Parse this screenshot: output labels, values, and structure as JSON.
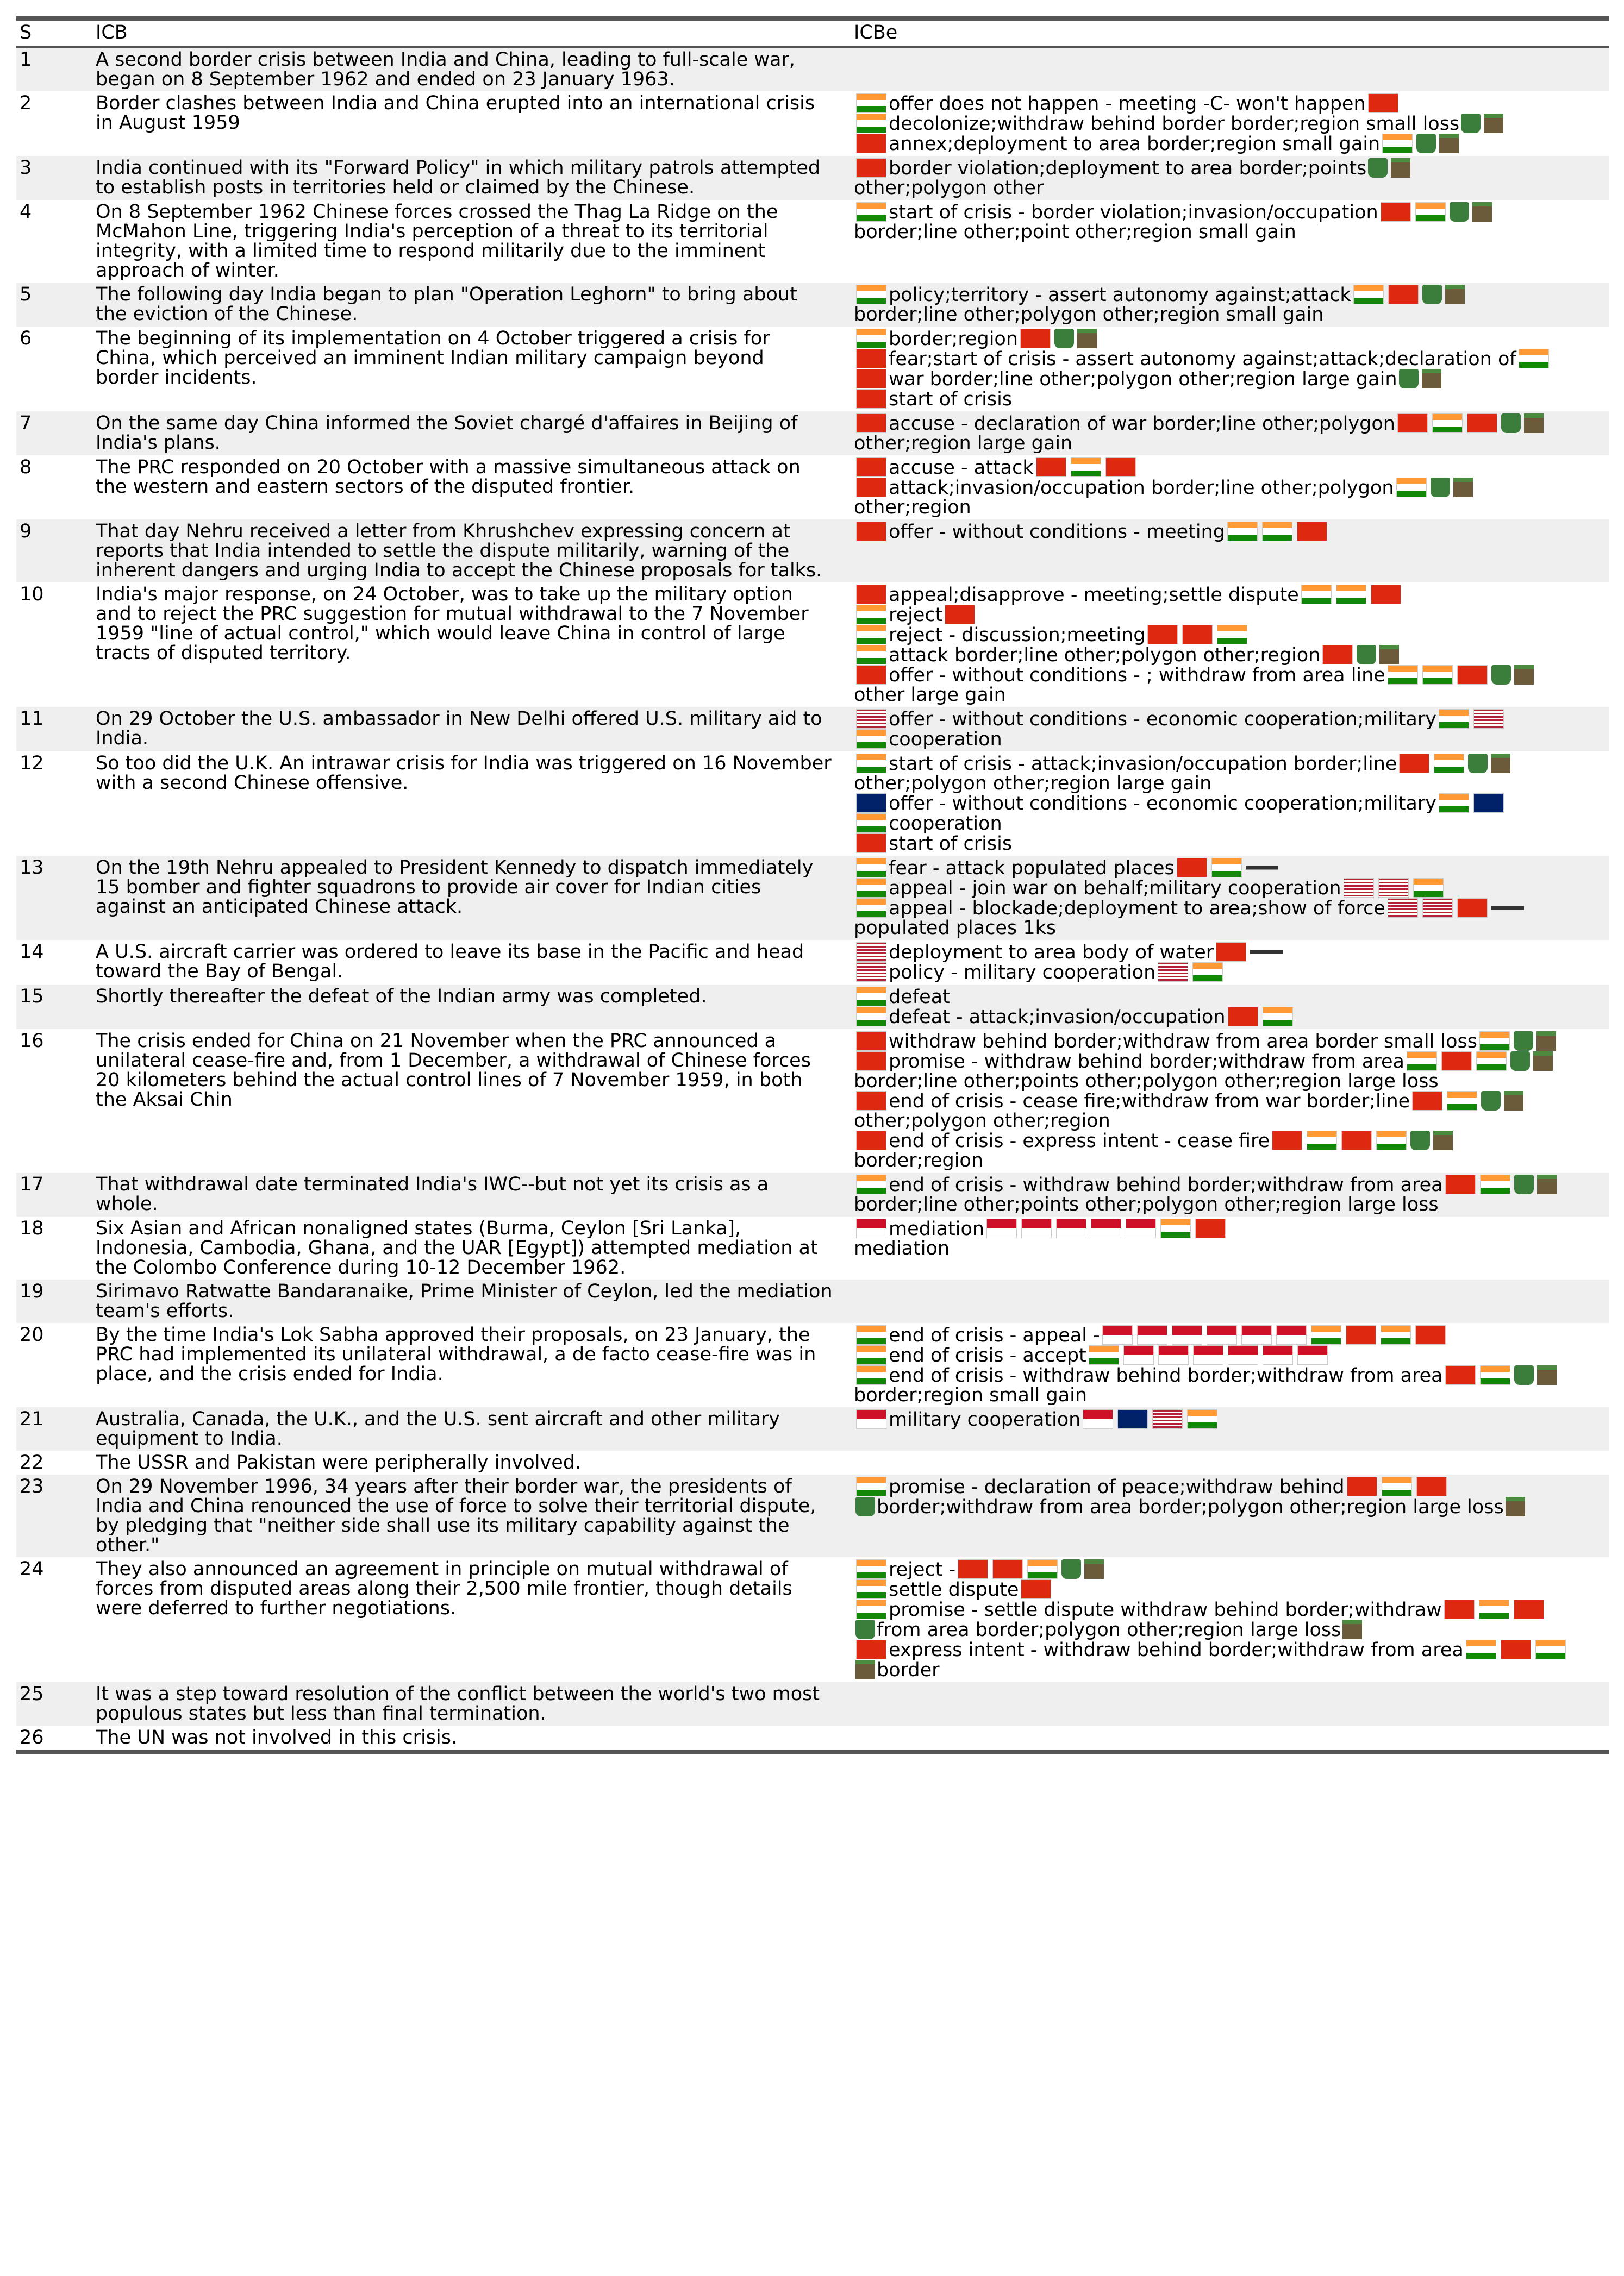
{
  "headers": [
    "S",
    "ICB",
    "ICBe"
  ],
  "rows": [
    {
      "s": "1",
      "icb": [
        "A second border crisis between India and China, leading to full-scale war,",
        "began on 8 September 1962 and ended on 23 January 1963."
      ],
      "icbe": []
    },
    {
      "s": "2",
      "icb": [
        "Border clashes between India and China erupted into an international crisis",
        "in August 1959"
      ],
      "icbe": [
        "offer does not happen - meeting -C- won't happen",
        "decolonize;withdraw behind border border;region small loss",
        "annex;deployment to area border;region small gain"
      ]
    },
    {
      "s": "3",
      "icb": [
        "India continued with its \"Forward Policy\" in which military patrols attempted",
        "to establish posts in territories held or claimed by the Chinese."
      ],
      "icbe": [
        "border violation;deployment to area border;points",
        "other;polygon other"
      ]
    },
    {
      "s": "4",
      "icb": [
        "On 8 September 1962 Chinese forces crossed the Thag La Ridge on the",
        "McMahon Line, triggering India's perception of a threat to its territorial",
        "integrity, with a limited time to respond militarily due to the imminent",
        "approach of winter."
      ],
      "icbe": [
        "start of crisis - border violation;invasion/occupation",
        "border;line other;point other;region small gain"
      ]
    },
    {
      "s": "5",
      "icb": [
        "The following day India began to plan \"Operation Leghorn\" to bring about",
        "the eviction of the Chinese."
      ],
      "icbe": [
        "policy;territory - assert autonomy against;attack",
        "border;line other;polygon other;region small gain"
      ]
    },
    {
      "s": "6",
      "icb": [
        "The beginning of its implementation on 4 October triggered a crisis for",
        "China, which perceived an imminent Indian military campaign beyond",
        "border incidents."
      ],
      "icbe": [
        "border;region",
        "fear;start of crisis - assert autonomy against;attack;declaration of",
        "war border;line other;polygon other;region large gain",
        "start of crisis"
      ]
    },
    {
      "s": "7",
      "icb": [
        "On the same day China informed the Soviet chargé d'affaires in Beijing of",
        "India's plans."
      ],
      "icbe": [
        "accuse - declaration of war border;line other;polygon",
        "other;region large gain"
      ]
    },
    {
      "s": "8",
      "icb": [
        "The PRC responded on 20 October with a massive simultaneous attack on",
        "the western and eastern sectors of the disputed frontier."
      ],
      "icbe": [
        "accuse - attack",
        "attack;invasion/occupation border;line other;polygon",
        "other;region"
      ]
    },
    {
      "s": "9",
      "icb": [
        "That day Nehru received a letter from Khrushchev expressing concern at",
        "reports that India intended to settle the dispute militarily, warning of the",
        "inherent dangers and urging India to accept the Chinese proposals for talks."
      ],
      "icbe": [
        "offer - without conditions - meeting"
      ]
    },
    {
      "s": "10",
      "icb": [
        "India's major response, on 24 October, was to take up the military option",
        "and to reject the PRC suggestion for mutual withdrawal to the 7 November",
        "1959 \"line of actual control,\" which would leave China in control of large",
        "tracts of disputed territory."
      ],
      "icbe": [
        "appeal;disapprove - meeting;settle dispute",
        "reject",
        "reject - discussion;meeting",
        "attack border;line other;polygon other;region",
        "offer - without conditions - ; withdraw from area line",
        "other large gain"
      ]
    },
    {
      "s": "11",
      "icb": [
        "On 29 October the U.S. ambassador in New Delhi offered U.S. military aid to",
        "India."
      ],
      "icbe": [
        "offer - without conditions - economic cooperation;military",
        "cooperation"
      ]
    },
    {
      "s": "12",
      "icb": [
        "So too did the U.K. An intrawar crisis for India was triggered on 16 November",
        "with a second Chinese offensive."
      ],
      "icbe": [
        "start of crisis - attack;invasion/occupation border;line",
        "other;polygon other;region large gain",
        "offer - without conditions - economic cooperation;military",
        "cooperation",
        "start of crisis"
      ]
    },
    {
      "s": "13",
      "icb": [
        "On the 19th Nehru appealed to President Kennedy to dispatch immediately",
        "15 bomber and fighter squadrons to provide air cover for Indian cities",
        "against an anticipated Chinese attack."
      ],
      "icbe": [
        "fear - attack populated places",
        "appeal - join war on behalf;military cooperation",
        "appeal - blockade;deployment to area;show of force",
        "populated places 1ks"
      ]
    },
    {
      "s": "14",
      "icb": [
        "A U.S. aircraft carrier was ordered to leave its base in the Pacific and head",
        "toward the Bay of Bengal."
      ],
      "icbe": [
        "deployment to area body of water",
        "policy - military cooperation"
      ]
    },
    {
      "s": "15",
      "icb": [
        "Shortly thereafter the defeat of the Indian army was completed."
      ],
      "icbe": [
        "defeat",
        "defeat - attack;invasion/occupation"
      ]
    },
    {
      "s": "16",
      "icb": [
        "The crisis ended for China on 21 November when the PRC announced a",
        "unilateral cease-fire and, from 1 December, a withdrawal of Chinese forces",
        "20 kilometers behind the actual control lines of 7 November 1959, in both",
        "the Aksai Chin"
      ],
      "icbe": [
        "withdraw behind border;withdraw from area border small loss",
        "promise - withdraw behind border;withdraw from area",
        "border;line other;points other;polygon other;region large loss",
        "end of crisis - cease fire;withdraw from war border;line",
        "other;polygon other;region",
        "end of crisis - express intent - cease fire",
        "border;region"
      ]
    },
    {
      "s": "17",
      "icb": [
        "That withdrawal date terminated India's IWC--but not yet its crisis as a",
        "whole."
      ],
      "icbe": [
        "end of crisis - withdraw behind border;withdraw from area",
        "border;line other;points other;polygon other;region large loss"
      ]
    },
    {
      "s": "18",
      "icb": [
        "Six Asian and African nonaligned states (Burma, Ceylon [Sri Lanka],",
        "Indonesia, Cambodia, Ghana, and the UAR [Egypt]) attempted mediation at",
        "the Colombo Conference during 10-12 December 1962."
      ],
      "icbe": [
        "mediation",
        "mediation"
      ]
    },
    {
      "s": "19",
      "icb": [
        "Sirimavo Ratwatte Bandaranaike, Prime Minister of Ceylon, led the mediation",
        "team's efforts."
      ],
      "icbe": []
    },
    {
      "s": "20",
      "icb": [
        "By the time India's Lok Sabha approved their proposals, on 23 January, the",
        "PRC had implemented its unilateral withdrawal, a de facto cease-fire was in",
        "place, and the crisis ended for India."
      ],
      "icbe": [
        "end of crisis - appeal -",
        "end of crisis - accept",
        "end of crisis - withdraw behind border;withdraw from area",
        "border;region small gain"
      ]
    },
    {
      "s": "21",
      "icb": [
        "Australia, Canada, the U.K., and the U.S. sent aircraft and other military",
        "equipment to India."
      ],
      "icbe": [
        "military cooperation"
      ]
    },
    {
      "s": "22",
      "icb": [
        "The USSR and Pakistan were peripherally involved."
      ],
      "icbe": []
    },
    {
      "s": "23",
      "icb": [
        "On 29 November 1996, 34 years after their border war, the presidents of",
        "India and China renounced the use of force to solve their territorial dispute,",
        "by pledging that \"neither side shall use its military capability against the",
        "other.\""
      ],
      "icbe": [
        "promise - declaration of peace;withdraw behind",
        "border;withdraw from area border;polygon other;region large loss"
      ]
    },
    {
      "s": "24",
      "icb": [
        "They also announced an agreement in principle on mutual withdrawal of",
        "forces from disputed areas along their 2,500 mile frontier, though details",
        "were deferred to further negotiations."
      ],
      "icbe": [
        "reject -",
        "settle dispute",
        "promise - settle dispute withdraw behind border;withdraw",
        "from area border;polygon other;region large loss",
        "express intent - withdraw behind border;withdraw from area",
        "border"
      ]
    },
    {
      "s": "25",
      "icb": [
        "It was a step toward resolution of the conflict between the world's two most",
        "populous states but less than final termination."
      ],
      "icbe": []
    },
    {
      "s": "26",
      "icb": [
        "The UN was not involved in this crisis."
      ],
      "icbe": []
    }
  ]
}
